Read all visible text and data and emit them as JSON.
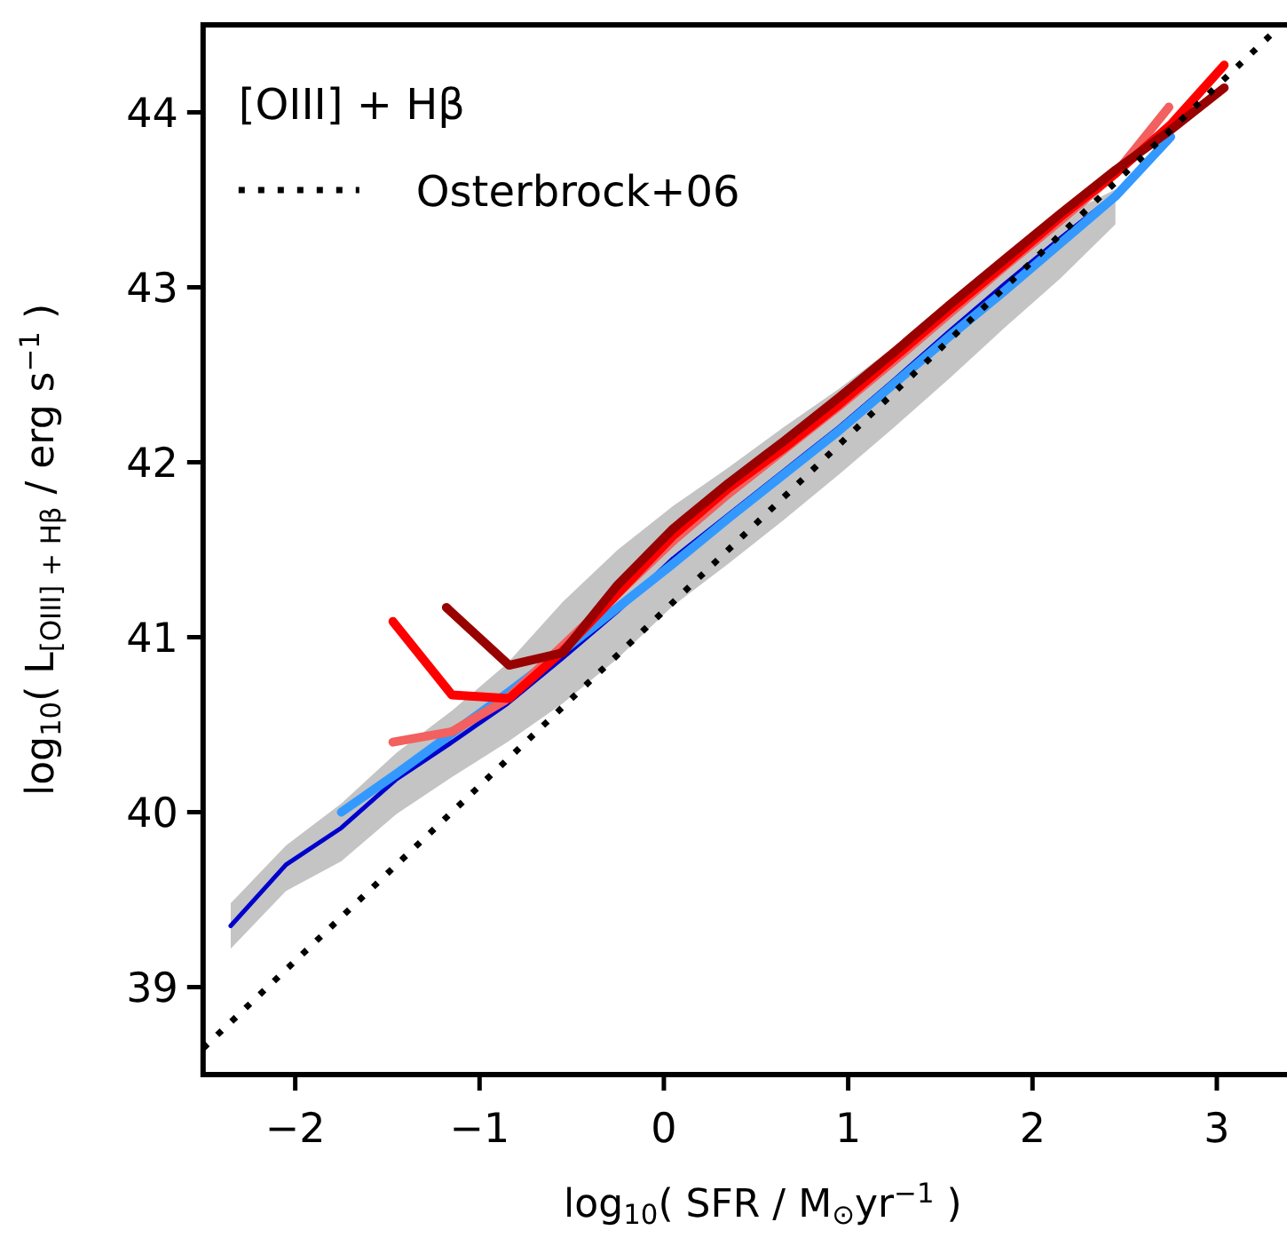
{
  "chart_data": {
    "type": "line",
    "xlabel": "log$_{10}$( SFR / M$_{⊙}$yr$^{−1}$ )",
    "ylabel": "log$_{10}$( L$_{[OIII] + Hβ}$ / erg s$^{−1}$ )",
    "legend_title": "[OIII] + Hβ",
    "legend": "top left",
    "xlim": [
      -2.5,
      3.4
    ],
    "xticks": [
      {
        "value": -2,
        "label": "−2"
      },
      {
        "value": -1,
        "label": "−1"
      },
      0,
      1,
      2,
      3
    ],
    "ylim": [
      38.5,
      44.5
    ],
    "yticks": [
      39,
      40,
      41,
      42,
      43,
      44
    ],
    "grid": false,
    "series": [
      {
        "color": "#0000cc",
        "x": [
          -2.35,
          -2.05,
          -1.75,
          -1.45,
          -1.15,
          -0.85,
          -0.55,
          -0.25,
          0.05,
          0.35,
          0.65,
          0.95,
          1.25,
          1.55,
          1.85,
          2.15,
          2.45
        ],
        "values": [
          39.35,
          39.7,
          39.91,
          40.19,
          40.4,
          40.62,
          40.88,
          41.15,
          41.45,
          41.7,
          41.95,
          42.2,
          42.47,
          42.75,
          43.02,
          43.28,
          43.53
        ],
        "lower": [
          39.22,
          39.55,
          39.72,
          39.99,
          40.2,
          40.4,
          40.62,
          40.88,
          41.18,
          41.42,
          41.67,
          41.93,
          42.2,
          42.48,
          42.77,
          43.05,
          43.36
        ],
        "upper": [
          39.48,
          39.81,
          40.05,
          40.34,
          40.58,
          40.85,
          41.2,
          41.5,
          41.75,
          41.97,
          42.2,
          42.42,
          42.66,
          42.92,
          43.18,
          43.4,
          43.56
        ]
      },
      {
        "color": "#3399ff",
        "x": [
          -1.75,
          -1.45,
          -1.15,
          -0.85,
          -0.55,
          -0.25,
          0.05,
          0.35,
          0.65,
          0.95,
          1.25,
          1.55,
          1.85,
          2.15,
          2.45,
          2.75
        ],
        "values": [
          40.0,
          40.22,
          40.45,
          40.68,
          40.92,
          41.17,
          41.42,
          41.68,
          41.93,
          42.18,
          42.45,
          42.72,
          42.98,
          43.25,
          43.52,
          43.86
        ]
      },
      {
        "color": "#f26060",
        "x": [
          -1.47,
          -1.15,
          -0.86,
          -0.55,
          -0.25,
          0.05,
          0.35,
          0.65,
          0.95,
          1.25,
          1.55,
          1.85,
          2.15,
          2.45,
          2.74
        ],
        "values": [
          40.4,
          40.46,
          40.64,
          40.95,
          41.25,
          41.55,
          41.82,
          42.07,
          42.32,
          42.58,
          42.85,
          43.12,
          43.38,
          43.65,
          44.03
        ]
      },
      {
        "color": "#ff0000",
        "x": [
          -1.47,
          -1.15,
          -0.84,
          -0.55,
          -0.25,
          0.05,
          0.35,
          0.65,
          0.95,
          1.25,
          1.55,
          1.85,
          2.15,
          2.45,
          2.75,
          3.04
        ],
        "values": [
          41.09,
          40.67,
          40.65,
          40.92,
          41.25,
          41.58,
          41.85,
          42.08,
          42.33,
          42.6,
          42.87,
          43.13,
          43.4,
          43.65,
          43.93,
          44.27
        ]
      },
      {
        "color": "#990000",
        "x": [
          -1.18,
          -0.84,
          -0.55,
          -0.25,
          0.05,
          0.35,
          0.65,
          0.95,
          1.25,
          1.55,
          1.85,
          2.15,
          2.45,
          2.75,
          3.04
        ],
        "values": [
          41.17,
          40.84,
          40.91,
          41.3,
          41.62,
          41.88,
          42.12,
          42.37,
          42.63,
          42.9,
          43.16,
          43.42,
          43.67,
          43.9,
          44.14
        ]
      },
      {
        "name": "Osterbrock+06",
        "color": "#000000",
        "line_style": "dotted",
        "x": [
          -2.5,
          3.3
        ],
        "values": [
          38.65,
          44.45
        ]
      }
    ]
  }
}
